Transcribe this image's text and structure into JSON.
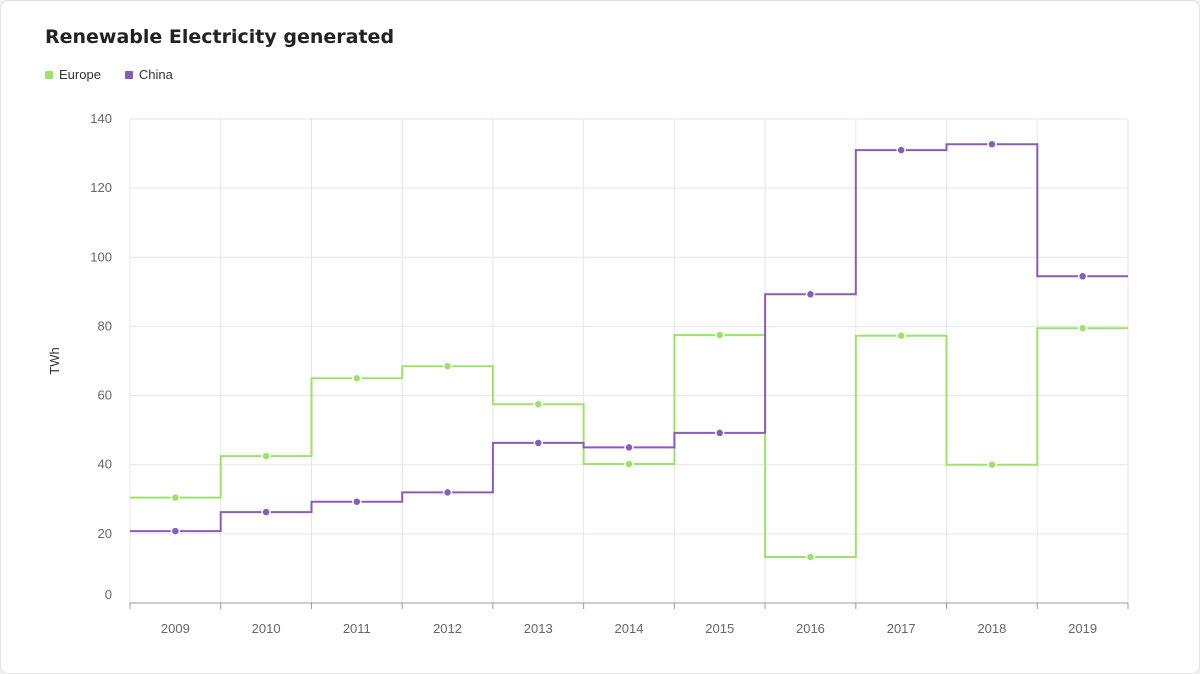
{
  "chart_data": {
    "type": "line",
    "step": "center",
    "title": "Renewable Electricity generated",
    "ylabel": "TWh",
    "xlabel": "",
    "categories": [
      "2009",
      "2010",
      "2011",
      "2012",
      "2013",
      "2014",
      "2015",
      "2016",
      "2017",
      "2018",
      "2019"
    ],
    "ylim": [
      0,
      140
    ],
    "yticks": [
      0,
      20,
      40,
      60,
      80,
      100,
      120,
      140
    ],
    "grid": true,
    "legend_position": "top-left",
    "series": [
      {
        "name": "Europe",
        "color": "#9be36b",
        "values": [
          30.5,
          42.5,
          65,
          68.5,
          57.5,
          40.2,
          77.5,
          13.3,
          77.3,
          40,
          79.5
        ]
      },
      {
        "name": "China",
        "color": "#8a5bbd",
        "values": [
          20.8,
          26.3,
          29.3,
          32,
          46.3,
          45,
          49.2,
          89.3,
          131,
          132.7,
          94.5
        ]
      }
    ]
  }
}
